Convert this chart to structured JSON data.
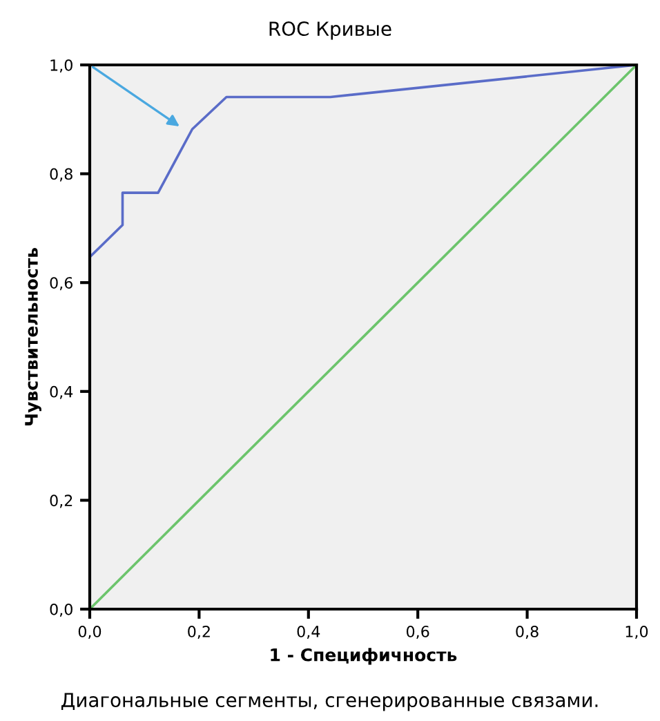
{
  "chart_data": {
    "type": "line",
    "title": "ROC Кривые",
    "xlabel": "1 - Специфичность",
    "ylabel": "Чувствительность",
    "annotations": [
      "Диагональные сегменты, сгенерированные связами."
    ],
    "series": [
      {
        "color": "#5a6cc8",
        "x": [
          0,
          0,
          0.06,
          0.06,
          0.125,
          0.1875,
          0.25,
          0.44,
          1.0
        ],
        "values": [
          0,
          0.647,
          0.706,
          0.765,
          0.765,
          0.882,
          0.941,
          0.941,
          1.0
        ]
      },
      {
        "color": "#6cc46c",
        "x": [
          0,
          1
        ],
        "values": [
          0,
          1
        ]
      }
    ],
    "xlim": [
      0,
      1
    ],
    "ylim": [
      0,
      1
    ],
    "xticks": [
      {
        "value": 0,
        "label": "0,0"
      },
      {
        "value": 0.2,
        "label": "0,2"
      },
      {
        "value": 0.4,
        "label": "0,4"
      },
      {
        "value": 0.6,
        "label": "0,6"
      },
      {
        "value": 0.8,
        "label": "0,8"
      },
      {
        "value": 1,
        "label": "1,0"
      }
    ],
    "yticks": [
      {
        "value": 0,
        "label": "0,0"
      },
      {
        "value": 0.2,
        "label": "0,2"
      },
      {
        "value": 0.4,
        "label": "0,4"
      },
      {
        "value": 0.6,
        "label": "0,6"
      },
      {
        "value": 0.8,
        "label": "0,8"
      },
      {
        "value": 1,
        "label": "1,0"
      }
    ],
    "grid": false,
    "legend": false
  }
}
